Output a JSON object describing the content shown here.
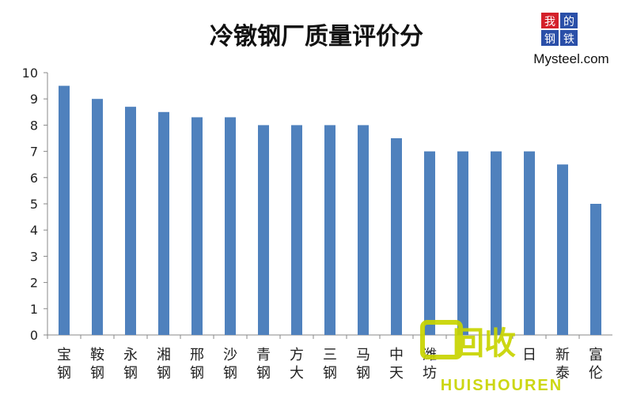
{
  "chart_data": {
    "type": "bar",
    "title": "冷镦钢厂质量评价分",
    "categories": [
      "宝钢",
      "鞍钢",
      "永钢",
      "湘钢",
      "邢钢",
      "沙钢",
      "青钢",
      "方大",
      "三钢",
      "马钢",
      "中天",
      "潍坊",
      "",
      "",
      "日",
      "新泰",
      "富伦"
    ],
    "values": [
      9.5,
      9.0,
      8.7,
      8.5,
      8.3,
      8.3,
      8.0,
      8.0,
      8.0,
      8.0,
      7.5,
      7.0,
      7.0,
      7.0,
      7.0,
      6.5,
      5.0
    ],
    "ylim": [
      0,
      10
    ],
    "yticks": [
      0,
      1,
      2,
      3,
      4,
      5,
      6,
      7,
      8,
      9,
      10
    ],
    "bar_color": "#4f81bd",
    "grid": false,
    "legend": false
  },
  "logo": {
    "chars": [
      "我",
      "的",
      "钢",
      "铁"
    ],
    "site": "Mysteel.com"
  },
  "watermark": {
    "text_cn": "回收",
    "text_en": "HUISHOUREN",
    "color": "#c8d400"
  }
}
